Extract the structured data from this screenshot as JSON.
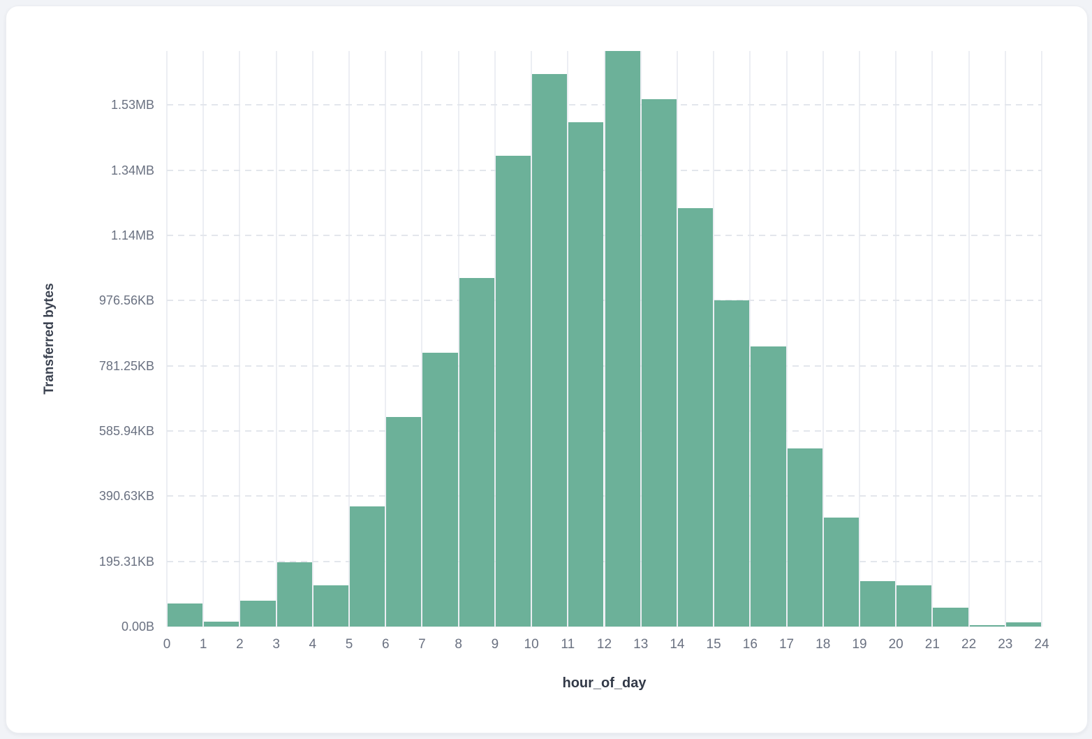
{
  "page": {
    "background": "#f1f3f7",
    "card_background": "#ffffff"
  },
  "chart_data": {
    "type": "bar",
    "subtype": "histogram",
    "title": "",
    "xlabel": "hour_of_day",
    "ylabel": "Transferred bytes",
    "bar_color": "#6cb199",
    "grid": true,
    "legend_position": "none",
    "bin_edges_hours": [
      0,
      1,
      2,
      3,
      4,
      5,
      6,
      7,
      8,
      9,
      10,
      11,
      12,
      13,
      14,
      15,
      16,
      17,
      18,
      19,
      20,
      21,
      22,
      23,
      24
    ],
    "x_tick_labels": [
      "0",
      "1",
      "2",
      "3",
      "4",
      "5",
      "6",
      "7",
      "8",
      "9",
      "10",
      "11",
      "12",
      "13",
      "14",
      "15",
      "16",
      "17",
      "18",
      "19",
      "20",
      "21",
      "22",
      "23",
      "24"
    ],
    "y_ticks": [
      {
        "label": "0.00B",
        "kb": 0
      },
      {
        "label": "195.31KB",
        "kb": 195.31
      },
      {
        "label": "390.63KB",
        "kb": 390.63
      },
      {
        "label": "585.94KB",
        "kb": 585.94
      },
      {
        "label": "781.25KB",
        "kb": 781.25
      },
      {
        "label": "976.56KB",
        "kb": 976.56
      },
      {
        "label": "1.14MB",
        "kb": 1171.88
      },
      {
        "label": "1.34MB",
        "kb": 1367.19
      },
      {
        "label": "1.53MB",
        "kb": 1562.5
      }
    ],
    "ylim_kb": [
      0,
      1724
    ],
    "series": [
      {
        "name": "Transferred bytes",
        "values_kb": [
          70,
          15,
          77,
          193,
          124,
          360,
          628,
          820,
          1045,
          1410,
          1654,
          1511,
          1724,
          1579,
          1253,
          977,
          838,
          534,
          327,
          137,
          123,
          56,
          4,
          13
        ]
      }
    ]
  }
}
